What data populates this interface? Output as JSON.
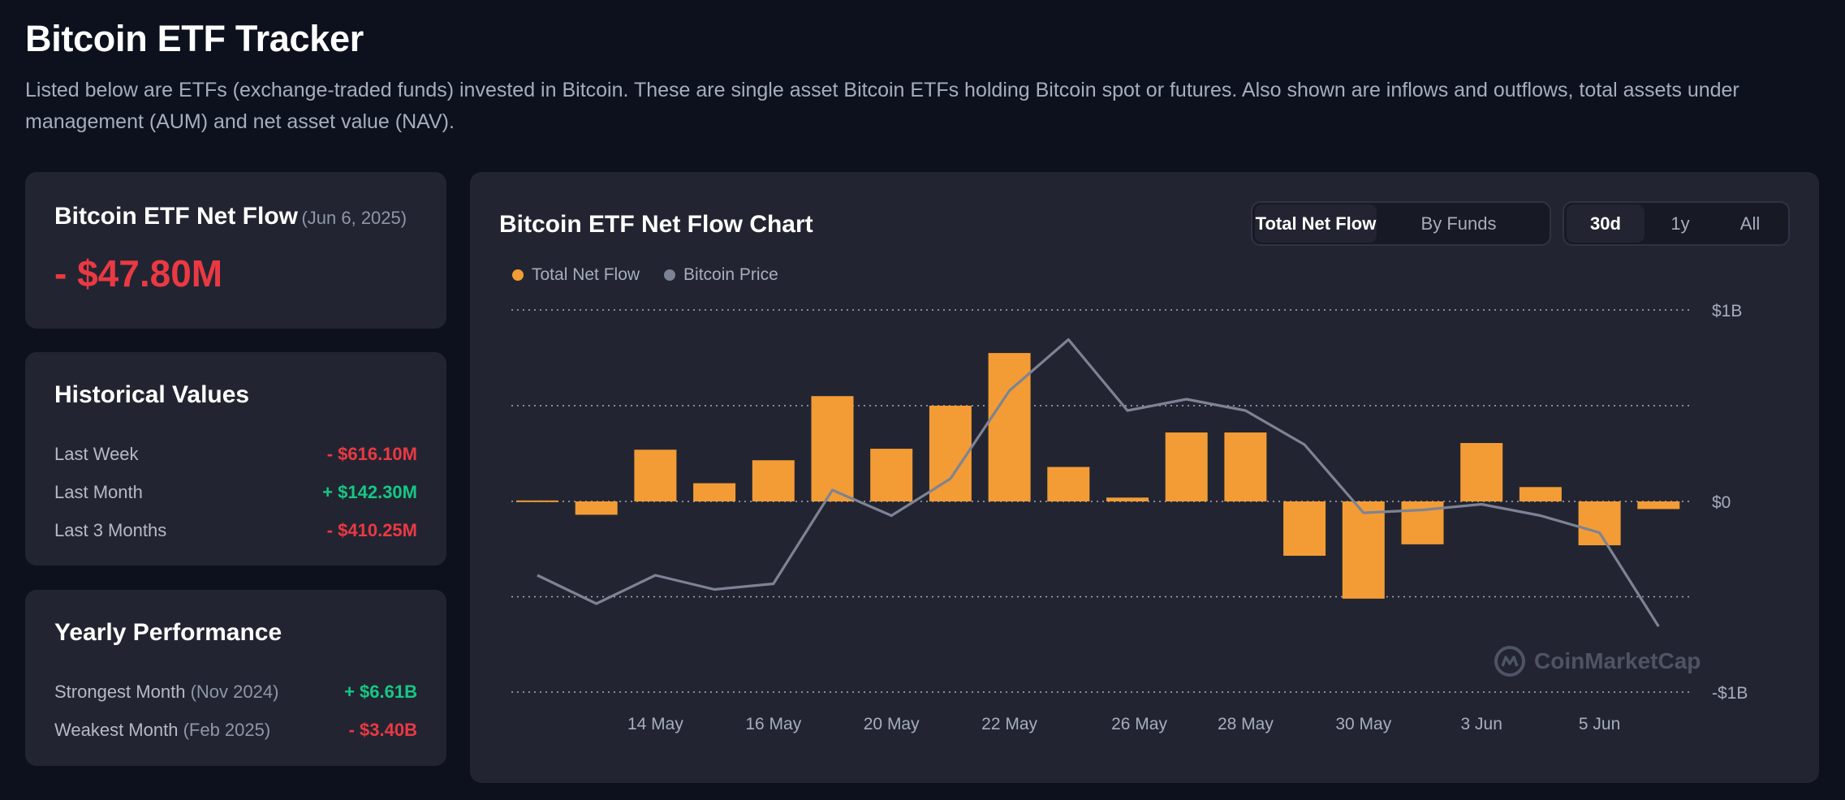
{
  "header": {
    "title": "Bitcoin ETF Tracker",
    "description": "Listed below are ETFs (exchange-traded funds) invested in Bitcoin. These are single asset Bitcoin ETFs holding Bitcoin spot or futures. Also shown are inflows and outflows, total assets under management (AUM) and net asset value (NAV)."
  },
  "net_flow": {
    "title": "Bitcoin ETF Net Flow",
    "date": "(Jun 6, 2025)",
    "value": "- $47.80M"
  },
  "historical": {
    "title": "Historical Values",
    "rows": [
      {
        "label": "Last Week",
        "value": "- $616.10M"
      },
      {
        "label": "Last Month",
        "value": "+ $142.30M"
      },
      {
        "label": "Last 3 Months",
        "value": "- $410.25M"
      }
    ]
  },
  "yearly": {
    "title": "Yearly Performance",
    "rows": [
      {
        "label": "Strongest Month",
        "period": "(Nov 2024)",
        "value": "+ $6.61B"
      },
      {
        "label": "Weakest Month",
        "period": "(Feb 2025)",
        "value": "- $3.40B"
      }
    ]
  },
  "chart_card": {
    "title": "Bitcoin ETF Net Flow Chart",
    "view_tabs": [
      "Total Net Flow",
      "By Funds"
    ],
    "range_tabs": [
      "30d",
      "1y",
      "All"
    ],
    "watermark": "CoinMarketCap"
  },
  "colors": {
    "bar": "#f39c35",
    "price_line": "#7d8394",
    "negative": "#ea3943",
    "positive": "#16c784"
  },
  "chart_data": {
    "type": "bar",
    "title": "Bitcoin ETF Net Flow Chart",
    "legend": [
      "Total Net Flow",
      "Bitcoin Price"
    ],
    "legend_position": "top-left",
    "y_ticks": [
      "$1B",
      "$0",
      "-$1B"
    ],
    "ylim": [
      -1000,
      1000
    ],
    "y_unit": "USD millions",
    "grid": true,
    "x_tick_labels": [
      "14 May",
      "16 May",
      "20 May",
      "22 May",
      "26 May",
      "28 May",
      "30 May",
      "3 Jun",
      "5 Jun"
    ],
    "x_tick_bar_index": [
      2,
      4,
      6,
      8,
      10.2,
      12,
      14,
      16,
      18
    ],
    "series": [
      {
        "name": "Total Net Flow",
        "type": "bar",
        "values": [
          5,
          -70,
          270,
          95,
          215,
          550,
          275,
          500,
          775,
          180,
          20,
          360,
          360,
          -285,
          -510,
          -225,
          305,
          75,
          -230,
          -40
        ]
      },
      {
        "name": "Bitcoin Price",
        "type": "line",
        "values": [
          0.28,
          0.18,
          0.28,
          0.23,
          0.25,
          0.58,
          0.49,
          0.62,
          0.93,
          1.11,
          0.86,
          0.9,
          0.86,
          0.74,
          0.5,
          0.51,
          0.53,
          0.49,
          0.43,
          0.1
        ]
      }
    ]
  }
}
